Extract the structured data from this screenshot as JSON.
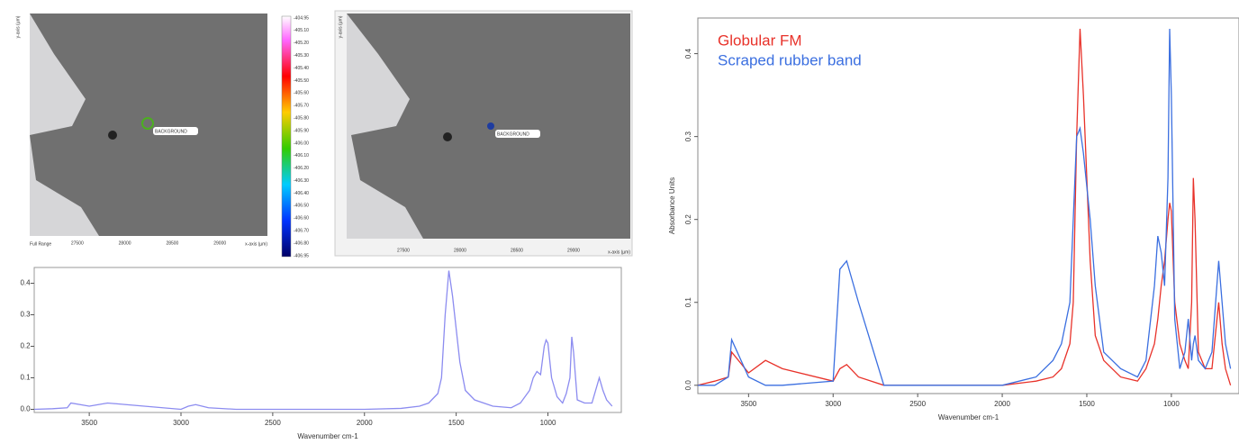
{
  "images": [
    {
      "marker_label": "BACKGROUND",
      "range_label": "Full Range",
      "x_axis_label": "x-axis (µm)",
      "y_axis_label": "y-axis (µm)",
      "x_ticks": [
        "27500",
        "28000",
        "28500",
        "29000"
      ]
    },
    {
      "marker_label": "BACKGROUND",
      "x_axis_label": "x-axis (µm)",
      "y_axis_label": "y-axis (µm)",
      "x_ticks": [
        "27500",
        "28000",
        "28500",
        "29000"
      ]
    }
  ],
  "colorbar_labels": [
    "-404.95",
    "-405.10",
    "-405.20",
    "-405.30",
    "-405.40",
    "-405.50",
    "-405.60",
    "-405.70",
    "-405.80",
    "-405.90",
    "-406.00",
    "-406.10",
    "-406.20",
    "-406.30",
    "-406.40",
    "-406.50",
    "-406.60",
    "-406.70",
    "-406.80",
    "-406.95"
  ],
  "chart_data": [
    {
      "type": "line",
      "x_label": "Wavenumber cm-1",
      "x": [
        3800,
        3700,
        3620,
        3600,
        3500,
        3400,
        3300,
        3000,
        2960,
        2920,
        2850,
        2700,
        2500,
        2200,
        2000,
        1800,
        1700,
        1650,
        1600,
        1580,
        1560,
        1540,
        1520,
        1480,
        1450,
        1400,
        1300,
        1200,
        1150,
        1100,
        1080,
        1060,
        1040,
        1020,
        1010,
        1000,
        980,
        950,
        920,
        900,
        880,
        870,
        860,
        840,
        800,
        760,
        720,
        700,
        680,
        650
      ],
      "series": [
        {
          "color": "#8c8cf0",
          "values": [
            0.0,
            0.002,
            0.005,
            0.02,
            0.01,
            0.02,
            0.015,
            0.0,
            0.01,
            0.015,
            0.005,
            0.0,
            0.0,
            0.0,
            0.0,
            0.003,
            0.01,
            0.02,
            0.05,
            0.1,
            0.3,
            0.44,
            0.36,
            0.15,
            0.06,
            0.03,
            0.01,
            0.005,
            0.02,
            0.06,
            0.1,
            0.12,
            0.11,
            0.2,
            0.22,
            0.21,
            0.1,
            0.04,
            0.02,
            0.05,
            0.1,
            0.23,
            0.18,
            0.03,
            0.02,
            0.02,
            0.1,
            0.06,
            0.03,
            0.01
          ]
        }
      ],
      "xlim": [
        3800,
        600
      ],
      "ylim": [
        -0.01,
        0.45
      ],
      "xticks": [
        3500,
        3000,
        2500,
        2000,
        1500,
        1000
      ],
      "yticks": [
        {
          "value": 0,
          "label": "0.0"
        },
        0.1,
        0.2,
        0.3,
        0.4
      ]
    },
    {
      "type": "line",
      "x_label": "Wavenumber cm-1",
      "y_label": "Absorbance Units",
      "x": [
        3800,
        3700,
        3620,
        3600,
        3500,
        3400,
        3300,
        3000,
        2960,
        2920,
        2850,
        2700,
        2500,
        2200,
        2000,
        1800,
        1700,
        1650,
        1600,
        1580,
        1560,
        1540,
        1520,
        1480,
        1450,
        1400,
        1300,
        1200,
        1150,
        1100,
        1080,
        1060,
        1040,
        1020,
        1010,
        1000,
        980,
        950,
        920,
        900,
        880,
        870,
        860,
        840,
        800,
        760,
        720,
        700,
        680,
        650
      ],
      "series": [
        {
          "name": "Globular FM",
          "color": "#e8322a",
          "values": [
            0.0,
            0.005,
            0.01,
            0.04,
            0.015,
            0.03,
            0.02,
            0.005,
            0.02,
            0.025,
            0.01,
            0.0,
            0.0,
            0.0,
            0.0,
            0.005,
            0.01,
            0.02,
            0.05,
            0.1,
            0.3,
            0.43,
            0.35,
            0.15,
            0.06,
            0.03,
            0.01,
            0.005,
            0.02,
            0.05,
            0.08,
            0.12,
            0.15,
            0.2,
            0.22,
            0.21,
            0.1,
            0.05,
            0.03,
            0.02,
            0.1,
            0.25,
            0.2,
            0.04,
            0.02,
            0.02,
            0.1,
            0.05,
            0.02,
            0.0
          ]
        },
        {
          "name": "Scraped rubber band",
          "color": "#3b6fe0",
          "values": [
            0.0,
            0.0,
            0.01,
            0.055,
            0.01,
            0.0,
            0.0,
            0.005,
            0.14,
            0.15,
            0.1,
            0.0,
            0.0,
            0.0,
            0.0,
            0.01,
            0.03,
            0.05,
            0.1,
            0.2,
            0.3,
            0.31,
            0.28,
            0.2,
            0.12,
            0.04,
            0.02,
            0.01,
            0.03,
            0.12,
            0.18,
            0.16,
            0.12,
            0.25,
            0.43,
            0.35,
            0.08,
            0.02,
            0.04,
            0.08,
            0.03,
            0.05,
            0.06,
            0.03,
            0.02,
            0.04,
            0.15,
            0.1,
            0.05,
            0.02
          ]
        }
      ],
      "xlim": [
        3800,
        600
      ],
      "ylim": [
        -0.01,
        0.443
      ],
      "xticks": [
        3500,
        3000,
        2500,
        2000,
        1500,
        1000
      ],
      "yticks": [
        {
          "value": 0,
          "label": "0.0"
        },
        0.1,
        0.2,
        0.3,
        0.4
      ]
    }
  ]
}
